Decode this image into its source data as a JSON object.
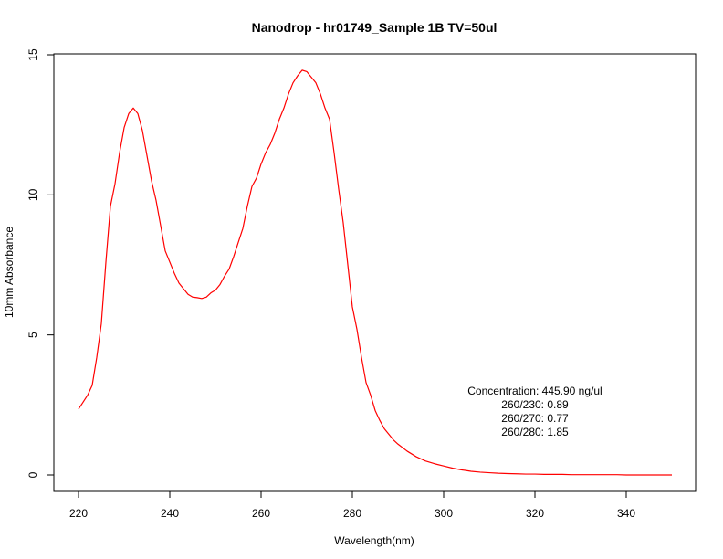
{
  "chart_data": {
    "type": "line",
    "title": "Nanodrop - hr01749_Sample 1B  TV=50ul",
    "xlabel": "Wavelength(nm)",
    "ylabel": "10mm Absorbance",
    "xlim": [
      220,
      350
    ],
    "ylim": [
      0,
      15
    ],
    "x_ticks": [
      220,
      240,
      260,
      280,
      300,
      320,
      340
    ],
    "x_tick_labels": [
      "220",
      "240",
      "260",
      "280",
      "300",
      "320",
      "340"
    ],
    "y_ticks": [
      0,
      5,
      10,
      15
    ],
    "y_tick_labels": [
      "0",
      "5",
      "10",
      "15"
    ],
    "grid": false,
    "series": [
      {
        "color": "#ff0000",
        "x": [
          220,
          221,
          222,
          223,
          224,
          225,
          226,
          227,
          228,
          229,
          230,
          231,
          232,
          233,
          234,
          235,
          236,
          237,
          238,
          239,
          240,
          241,
          242,
          243,
          244,
          245,
          246,
          247,
          248,
          249,
          250,
          251,
          252,
          253,
          254,
          255,
          256,
          257,
          258,
          259,
          260,
          261,
          262,
          263,
          264,
          265,
          266,
          267,
          268,
          269,
          270,
          271,
          272,
          273,
          274,
          275,
          276,
          277,
          278,
          279,
          280,
          281,
          282,
          283,
          284,
          285,
          286,
          287,
          288,
          289,
          290,
          292,
          294,
          296,
          298,
          300,
          302,
          304,
          306,
          308,
          310,
          312,
          314,
          316,
          318,
          320,
          322,
          324,
          326,
          328,
          330,
          332,
          334,
          336,
          338,
          340,
          342,
          344,
          346,
          348,
          350
        ],
        "y": [
          2.35,
          2.6,
          2.85,
          3.2,
          4.2,
          5.4,
          7.6,
          9.6,
          10.4,
          11.5,
          12.4,
          12.9,
          13.1,
          12.9,
          12.3,
          11.4,
          10.5,
          9.8,
          8.9,
          8.0,
          7.6,
          7.2,
          6.85,
          6.65,
          6.45,
          6.35,
          6.33,
          6.3,
          6.35,
          6.5,
          6.6,
          6.8,
          7.1,
          7.35,
          7.8,
          8.3,
          8.8,
          9.6,
          10.3,
          10.6,
          11.1,
          11.5,
          11.8,
          12.2,
          12.7,
          13.1,
          13.6,
          14.0,
          14.25,
          14.45,
          14.4,
          14.2,
          14.0,
          13.6,
          13.1,
          12.7,
          11.5,
          10.2,
          9.0,
          7.5,
          6.0,
          5.2,
          4.2,
          3.3,
          2.85,
          2.3,
          1.95,
          1.65,
          1.45,
          1.25,
          1.1,
          0.85,
          0.65,
          0.5,
          0.4,
          0.32,
          0.24,
          0.18,
          0.13,
          0.1,
          0.08,
          0.06,
          0.05,
          0.04,
          0.03,
          0.03,
          0.02,
          0.02,
          0.02,
          0.01,
          0.01,
          0.01,
          0.01,
          0.01,
          0.01,
          0.0,
          0.0,
          0.0,
          0.0,
          0.0,
          0.0
        ]
      }
    ],
    "annotation": {
      "line1": "Concentration: 445.90 ng/ul",
      "line2": "260/230: 0.89",
      "line3": "260/270: 0.77",
      "line4": "260/280: 1.85",
      "x": 320,
      "y_top": 3.0
    }
  }
}
